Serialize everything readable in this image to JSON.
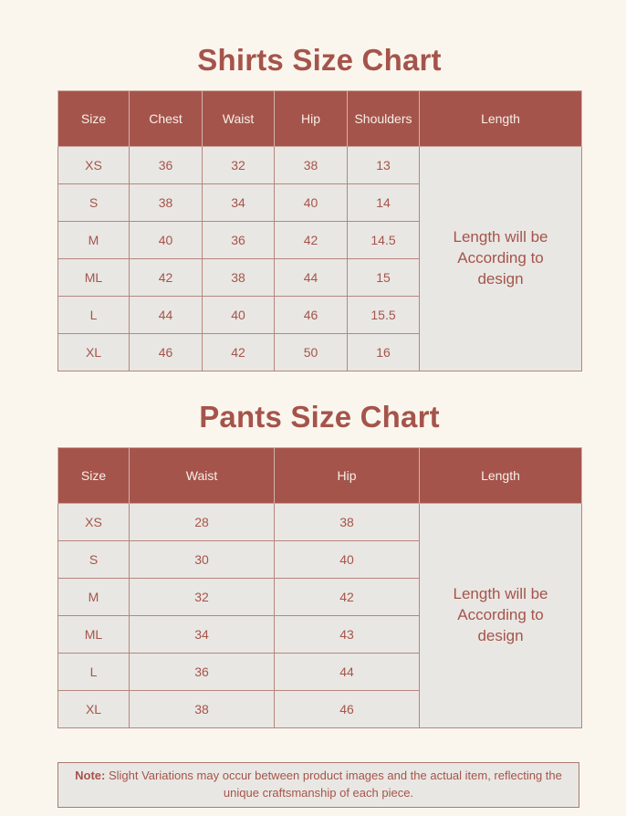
{
  "page": {
    "background_color": "#FAF6ED",
    "accent_color": "#A5544B",
    "cell_background_color": "#E9E7E3",
    "border_color": "#B5867D"
  },
  "shirts_chart": {
    "title": "Shirts Size Chart",
    "columns": [
      "Size",
      "Chest",
      "Waist",
      "Hip",
      "Shoulders",
      "Length"
    ],
    "rows": [
      [
        "XS",
        "36",
        "32",
        "38",
        "13"
      ],
      [
        "S",
        "38",
        "34",
        "40",
        "14"
      ],
      [
        "M",
        "40",
        "36",
        "42",
        "14.5"
      ],
      [
        "ML",
        "42",
        "38",
        "44",
        "15"
      ],
      [
        "L",
        "44",
        "40",
        "46",
        "15.5"
      ],
      [
        "XL",
        "46",
        "42",
        "50",
        "16"
      ]
    ],
    "length_note": "Length will be According to design"
  },
  "pants_chart": {
    "title": "Pants Size Chart",
    "columns": [
      "Size",
      "Waist",
      "Hip",
      "Length"
    ],
    "rows": [
      [
        "XS",
        "28",
        "38"
      ],
      [
        "S",
        "30",
        "40"
      ],
      [
        "M",
        "32",
        "42"
      ],
      [
        "ML",
        "34",
        "43"
      ],
      [
        "L",
        "36",
        "44"
      ],
      [
        "XL",
        "38",
        "46"
      ]
    ],
    "length_note": "Length will be According to design"
  },
  "note": {
    "label": "Note:",
    "text": " Slight Variations may occur between product images and the actual item, reflecting the unique craftsmanship of each piece."
  }
}
